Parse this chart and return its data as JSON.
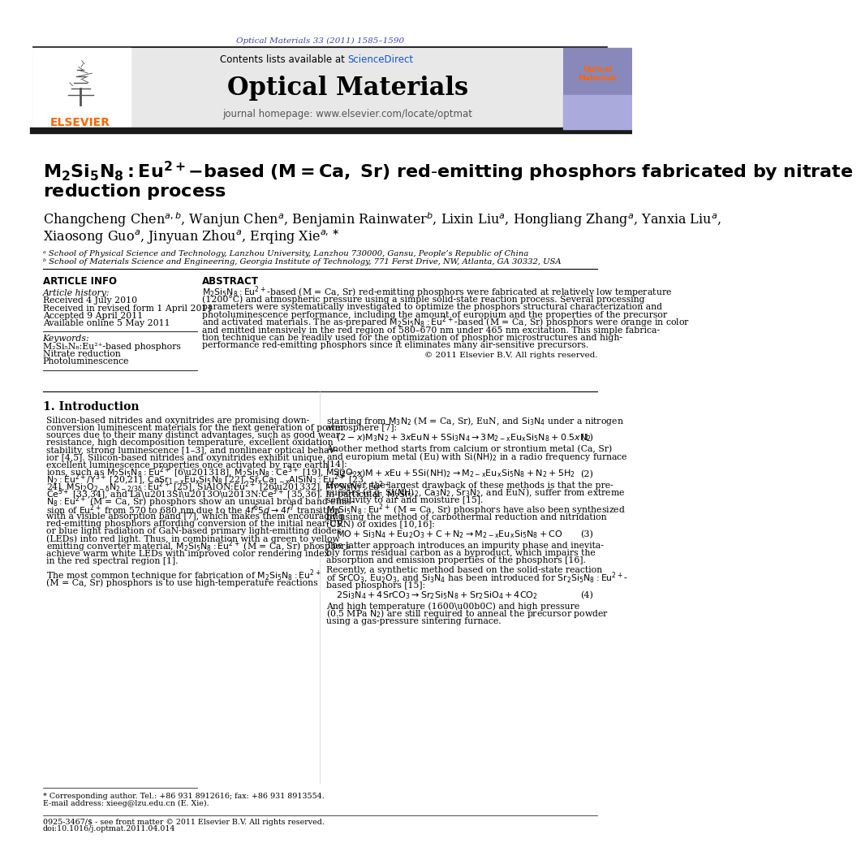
{
  "journal_ref": "Optical Materials 33 (2011) 1585–1590",
  "journal_name": "Optical Materials",
  "journal_homepage": "journal homepage: www.elsevier.com/locate/optmat",
  "contents_text": "Contents lists available at ScienceDirect",
  "sciencedirect_text": "ScienceDirect",
  "title_line1": "M₂Si₅N₈:Eu²⁺-based (M = Ca, Sr) red-emitting phosphors fabricated by nitrate",
  "title_line2": "reduction process",
  "affil_a": "ᵃ School of Physical Science and Technology, Lanzhou University, Lanzhou 730000, Gansu, People’s Republic of China",
  "affil_b": "ᵇ School of Materials Science and Engineering, Georgia Institute of Technology, 771 Ferst Drive, NW, Atlanta, GA 30332, USA",
  "section_article_info": "ARTICLE INFO",
  "section_abstract": "ABSTRACT",
  "article_history_label": "Article history:",
  "received": "Received 4 July 2010",
  "revised": "Received in revised form 1 April 2011",
  "accepted": "Accepted 9 April 2011",
  "available": "Available online 5 May 2011",
  "keywords_label": "Keywords:",
  "kw1": "M₂Si₅N₈:Eu²⁺-based phosphors",
  "kw2": "Nitrate reduction",
  "kw3": "Photoluminescence",
  "copyright": "© 2011 Elsevier B.V. All rights reserved.",
  "intro_heading": "1. Introduction",
  "footnote": "* Corresponding author. Tel.: +86 931 8912616; fax: +86 931 8913554.",
  "footnote2": "E-mail address: xieeg@lzu.edu.cn (E. Xie).",
  "footer1": "0925-3467/$ - see front matter © 2011 Elsevier B.V. All rights reserved.",
  "footer2": "doi:10.1016/j.optmat.2011.04.014",
  "bg_color": "#ffffff",
  "header_bg": "#e8e8e8",
  "title_color": "#000000",
  "link_color": "#1155cc",
  "journal_ref_color": "#4444aa",
  "elsevier_orange": "#ff6600"
}
